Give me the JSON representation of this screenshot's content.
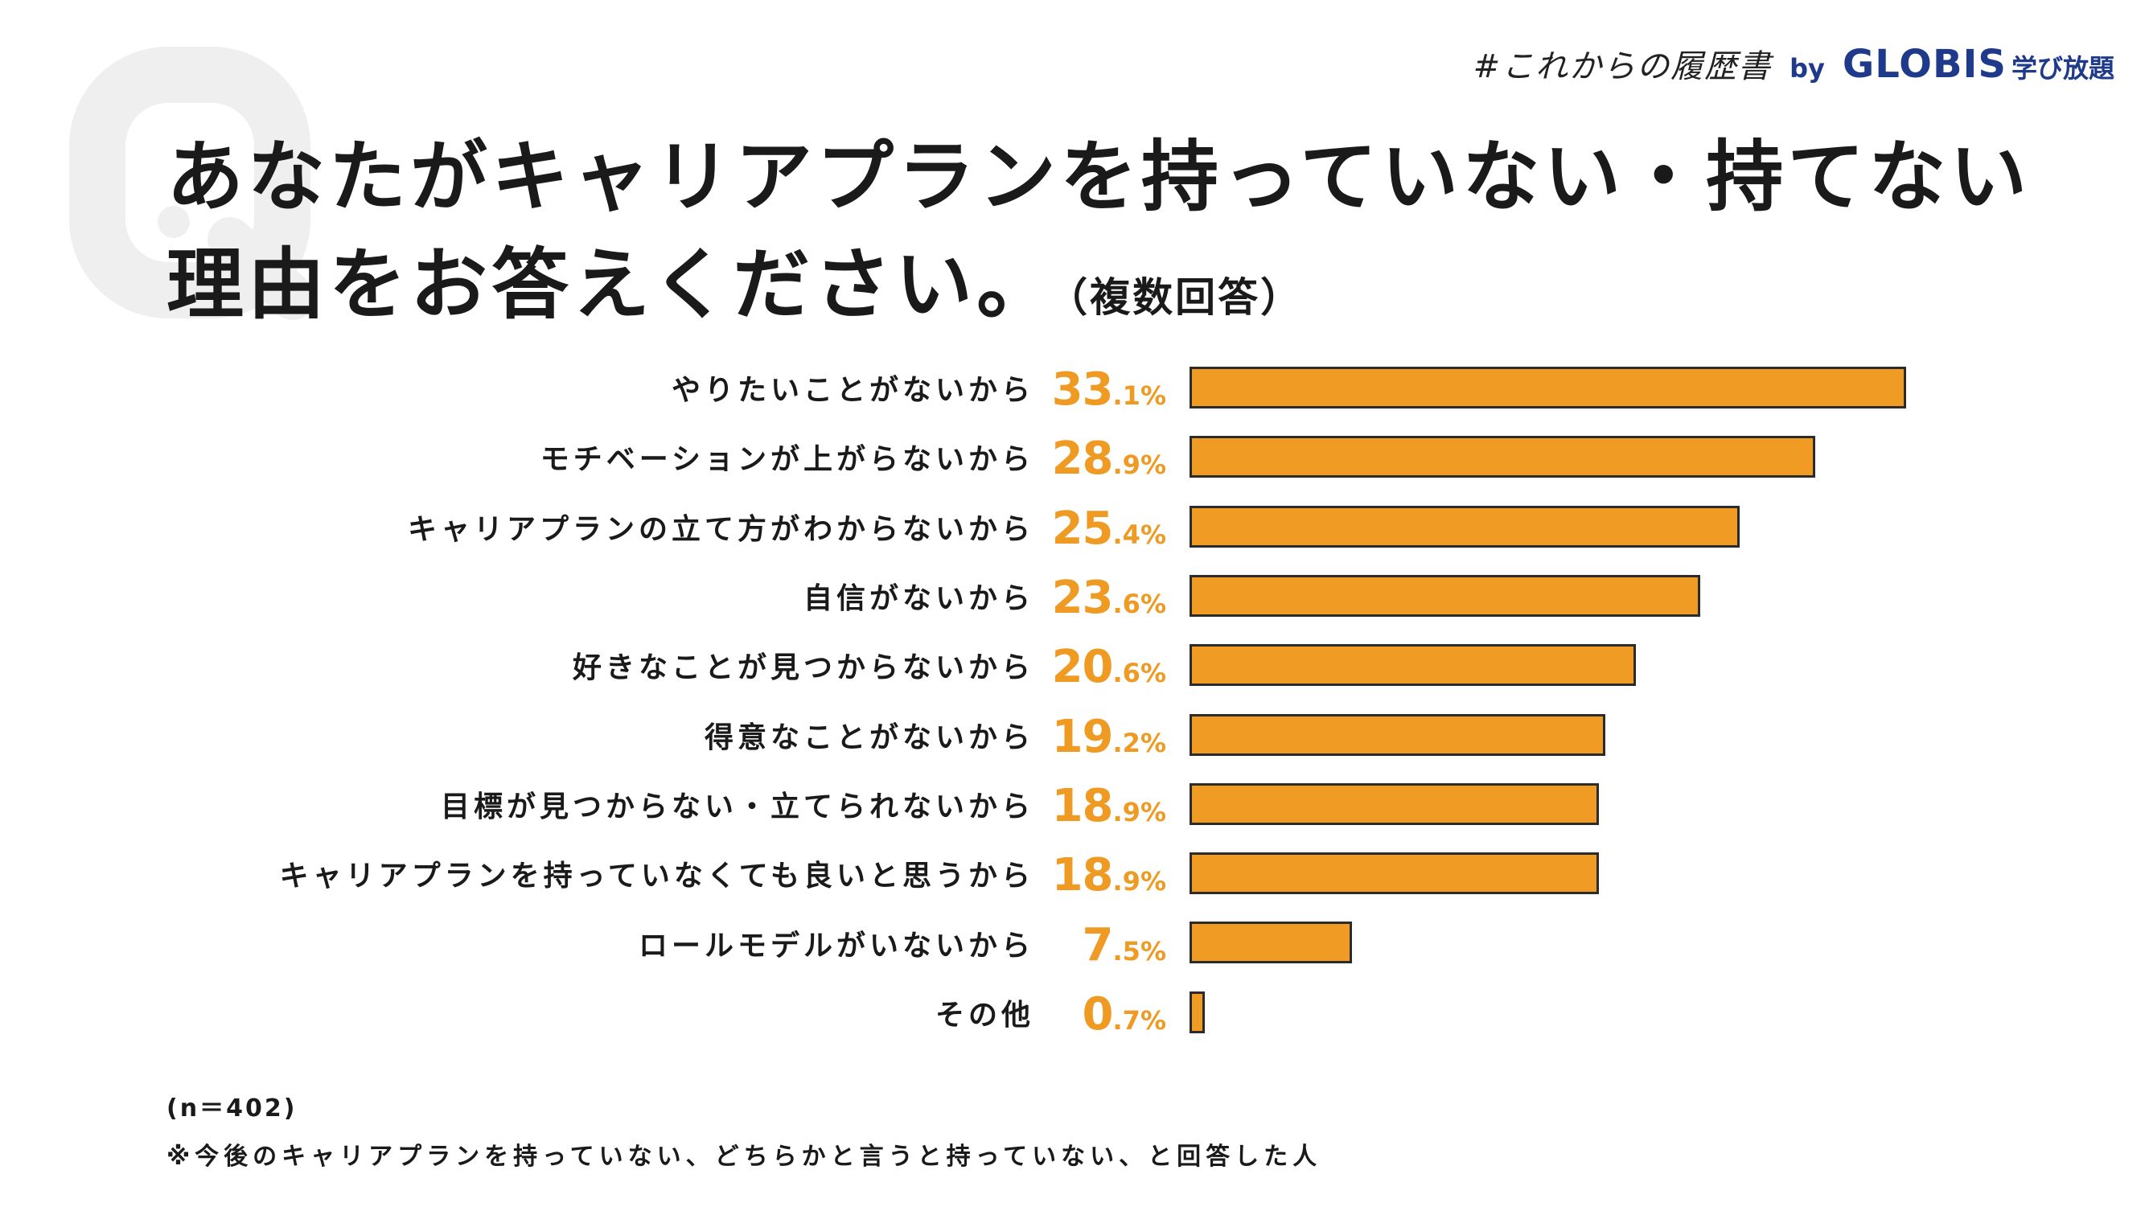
{
  "brand": {
    "hashtag": "#これからの履歴書",
    "by": "by",
    "company": "GLOBIS",
    "service": "学び放題"
  },
  "question": {
    "icon": "q-mark-icon",
    "title_line1": "あなたがキャリアプランを持っていない・持てない",
    "title_line2": "理由をお答えください。",
    "title_note": "（複数回答）"
  },
  "chart_data": {
    "type": "bar",
    "orientation": "horizontal",
    "categories": [
      "やりたいことがないから",
      "モチベーションが上がらないから",
      "キャリアプランの立て方がわからないから",
      "自信がないから",
      "好きなことが見つからないから",
      "得意なことがないから",
      "目標が見つからない・立てられないから",
      "キャリアプランを持っていなくても良いと思うから",
      "ロールモデルがいないから",
      "その他"
    ],
    "values": [
      33.1,
      28.9,
      25.4,
      23.6,
      20.6,
      19.2,
      18.9,
      18.9,
      7.5,
      0.7
    ],
    "unit": "%",
    "grid": false
  },
  "footer": {
    "sample_size": "(n＝402)",
    "note": "※今後のキャリアプランを持っていない、どちらかと言うと持っていない、と回答した人"
  },
  "colors": {
    "text": "#1A1A1A",
    "accent": "#EE9A23",
    "bar_fill": "#F09C24",
    "bar_border": "#2B2B2B",
    "brand": "#1F3A8A",
    "watermark": "#EFEFEF"
  }
}
